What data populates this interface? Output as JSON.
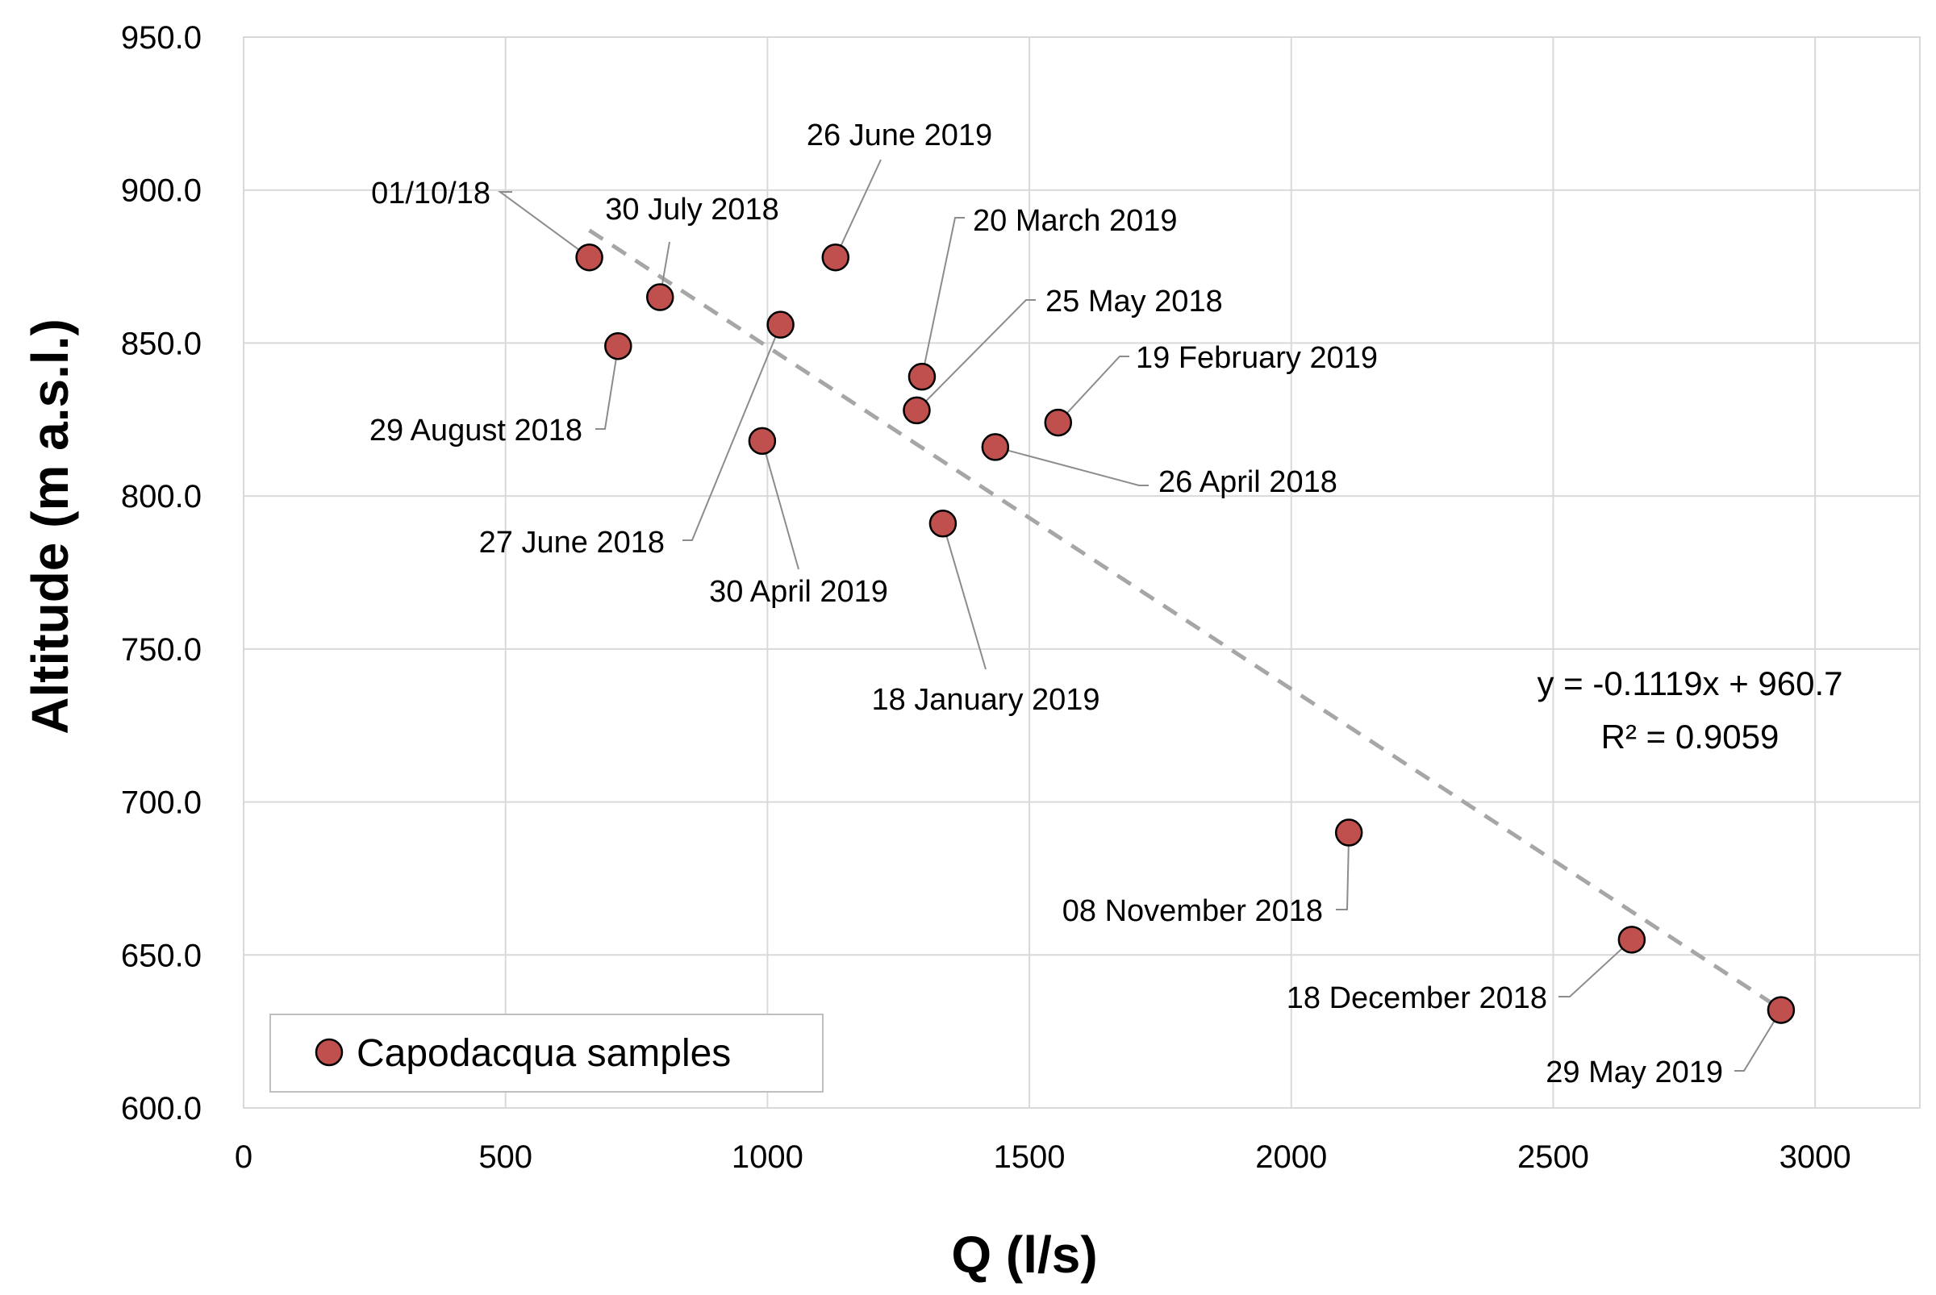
{
  "chart_data": {
    "type": "scatter",
    "title": "",
    "xlabel": "Q (l/s)",
    "ylabel": "Altitude (m a.s.l.)",
    "xlim": [
      0,
      3200
    ],
    "ylim": [
      600,
      950
    ],
    "x_ticks": [
      "0",
      "500",
      "1000",
      "1500",
      "2000",
      "2500",
      "3000"
    ],
    "y_ticks": [
      "600.0",
      "650.0",
      "700.0",
      "750.0",
      "800.0",
      "850.0",
      "900.0",
      "950.0"
    ],
    "grid": true,
    "legend": {
      "position": "bottom-left",
      "entries": [
        "Capodacqua samples"
      ]
    },
    "marker_color": "#c0504d",
    "series": [
      {
        "name": "Capodacqua samples",
        "points": [
          {
            "label": "01/10/18",
            "x": 660,
            "y": 878
          },
          {
            "label": "30 July 2018",
            "x": 795,
            "y": 865
          },
          {
            "label": "29 August 2018",
            "x": 715,
            "y": 849
          },
          {
            "label": "26 June 2019",
            "x": 1130,
            "y": 878
          },
          {
            "label": "27 June 2018",
            "x": 1025,
            "y": 856
          },
          {
            "label": "30 April 2019",
            "x": 990,
            "y": 818
          },
          {
            "label": "20 March 2019",
            "x": 1295,
            "y": 839
          },
          {
            "label": "25 May 2018",
            "x": 1285,
            "y": 828
          },
          {
            "label": "18 January 2019",
            "x": 1335,
            "y": 791
          },
          {
            "label": "26 April 2018",
            "x": 1435,
            "y": 816
          },
          {
            "label": "19 February 2019",
            "x": 1555,
            "y": 824
          },
          {
            "label": "08 November 2018",
            "x": 2110,
            "y": 690
          },
          {
            "label": "18 December 2018",
            "x": 2650,
            "y": 655
          },
          {
            "label": "29 May 2019",
            "x": 2935,
            "y": 632
          }
        ]
      }
    ],
    "trendline": {
      "type": "linear",
      "slope": -0.1119,
      "intercept": 960.7,
      "x_range": [
        660,
        2935
      ],
      "equation": "y = -0.1119x + 960.7",
      "r_squared": "R² = 0.9059"
    }
  }
}
